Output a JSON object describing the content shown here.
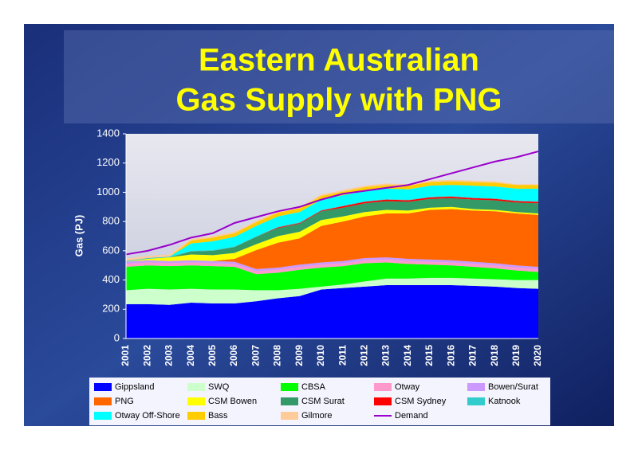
{
  "chart_data": {
    "type": "stacked_area",
    "title": "Eastern Australian",
    "subtitle": "Gas Supply with PNG",
    "y_label": "Gas (PJ)",
    "categories": [
      "2001",
      "2002",
      "2003",
      "2004",
      "2005",
      "2006",
      "2007",
      "2008",
      "2009",
      "2010",
      "2011",
      "2012",
      "2013",
      "2014",
      "2015",
      "2016",
      "2017",
      "2018",
      "2019",
      "2020"
    ],
    "ylim": [
      0,
      1400
    ],
    "yticks": [
      0,
      200,
      400,
      600,
      800,
      1000,
      1200,
      1400
    ],
    "grid": false,
    "legend": "bottom",
    "series": [
      {
        "name": "Gippsland",
        "color": "#0000ff",
        "values": [
          235,
          235,
          230,
          245,
          240,
          240,
          255,
          275,
          290,
          335,
          345,
          355,
          365,
          365,
          365,
          365,
          360,
          355,
          345,
          340
        ]
      },
      {
        "name": "SWQ",
        "color": "#ccffcc",
        "values": [
          95,
          105,
          105,
          95,
          95,
          95,
          75,
          55,
          50,
          20,
          25,
          35,
          45,
          45,
          50,
          50,
          50,
          50,
          55,
          60
        ]
      },
      {
        "name": "CBSA",
        "color": "#00ff00",
        "values": [
          160,
          160,
          160,
          160,
          160,
          155,
          110,
          120,
          130,
          130,
          125,
          125,
          110,
          100,
          90,
          85,
          80,
          75,
          65,
          55
        ]
      },
      {
        "name": "Otway",
        "color": "#ff99cc",
        "values": [
          20,
          20,
          20,
          20,
          20,
          20,
          20,
          20,
          20,
          20,
          20,
          20,
          20,
          20,
          20,
          20,
          20,
          20,
          20,
          20
        ]
      },
      {
        "name": "Bowen/Surat",
        "color": "#cc99ff",
        "values": [
          15,
          15,
          15,
          15,
          15,
          15,
          15,
          15,
          15,
          15,
          15,
          15,
          15,
          15,
          15,
          15,
          15,
          15,
          15,
          15
        ]
      },
      {
        "name": "PNG",
        "color": "#ff6600",
        "values": [
          0,
          0,
          0,
          0,
          0,
          20,
          130,
          170,
          180,
          250,
          270,
          285,
          300,
          310,
          340,
          350,
          350,
          355,
          355,
          355
        ]
      },
      {
        "name": "CSM Bowen",
        "color": "#ffff00",
        "values": [
          0,
          10,
          25,
          40,
          40,
          40,
          40,
          45,
          45,
          40,
          35,
          30,
          25,
          20,
          15,
          15,
          10,
          10,
          10,
          10
        ]
      },
      {
        "name": "CSM Surat",
        "color": "#339966",
        "values": [
          0,
          0,
          0,
          20,
          30,
          40,
          50,
          55,
          55,
          60,
          60,
          60,
          60,
          60,
          60,
          60,
          65,
          65,
          65,
          70
        ]
      },
      {
        "name": "CSM Sydney",
        "color": "#ff0000",
        "values": [
          0,
          0,
          0,
          0,
          0,
          0,
          0,
          5,
          5,
          5,
          10,
          10,
          10,
          10,
          10,
          10,
          10,
          10,
          10,
          10
        ]
      },
      {
        "name": "Katnook",
        "color": "#33cccc",
        "values": [
          5,
          5,
          5,
          5,
          5,
          5,
          5,
          5,
          5,
          5,
          5,
          5,
          5,
          5,
          5,
          5,
          5,
          5,
          5,
          5
        ]
      },
      {
        "name": "Otway Off-Shore",
        "color": "#00ffff",
        "values": [
          0,
          0,
          0,
          50,
          60,
          65,
          70,
          70,
          70,
          70,
          70,
          70,
          70,
          70,
          75,
          75,
          80,
          80,
          80,
          85
        ]
      },
      {
        "name": "Bass",
        "color": "#ffcc00",
        "values": [
          0,
          0,
          0,
          20,
          25,
          25,
          25,
          25,
          25,
          25,
          25,
          25,
          25,
          25,
          25,
          25,
          25,
          25,
          25,
          25
        ]
      },
      {
        "name": "Gilmore",
        "color": "#ffcc99",
        "values": [
          15,
          15,
          15,
          10,
          10,
          10,
          10,
          10,
          10,
          10,
          10,
          10,
          10,
          10,
          10,
          10,
          10,
          10,
          5,
          5
        ]
      },
      {
        "name": "Demand",
        "color": "#9900cc",
        "type": "line",
        "values": [
          575,
          600,
          640,
          690,
          720,
          790,
          830,
          870,
          900,
          950,
          990,
          1010,
          1030,
          1050,
          1090,
          1130,
          1170,
          1210,
          1240,
          1280
        ]
      }
    ]
  }
}
